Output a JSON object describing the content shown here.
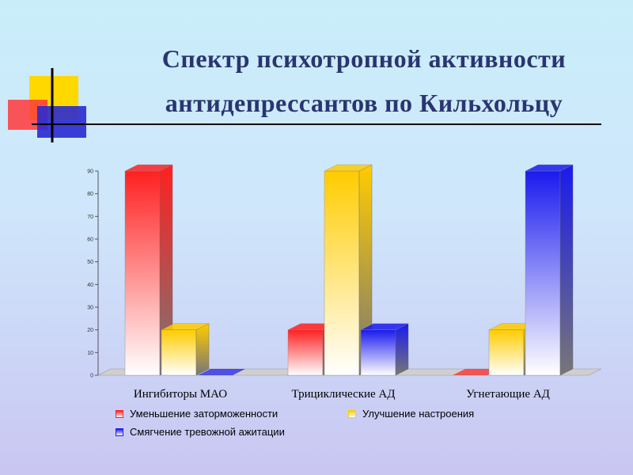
{
  "title_lines": [
    "Спектр психотропной активности",
    "антидепрессантов по Кильхольцу"
  ],
  "chart_data": {
    "type": "bar",
    "categories": [
      "Ингибиторы МАО",
      "Трициклические АД",
      "Угнетающие АД"
    ],
    "series": [
      {
        "name": "Уменьшение заторможенности",
        "values": [
          90,
          20,
          0
        ],
        "color": "#ff2020"
      },
      {
        "name": "Улучшение настроения",
        "values": [
          20,
          90,
          20
        ],
        "color": "#ffcc00"
      },
      {
        "name": "Смягчение тревожной ажитации",
        "values": [
          0,
          20,
          90
        ],
        "color": "#1a1aee"
      }
    ],
    "yticks": [
      0,
      10,
      20,
      30,
      40,
      50,
      60,
      70,
      80,
      90
    ],
    "ylim": [
      0,
      90
    ],
    "grid": false,
    "legend_position": "bottom"
  }
}
